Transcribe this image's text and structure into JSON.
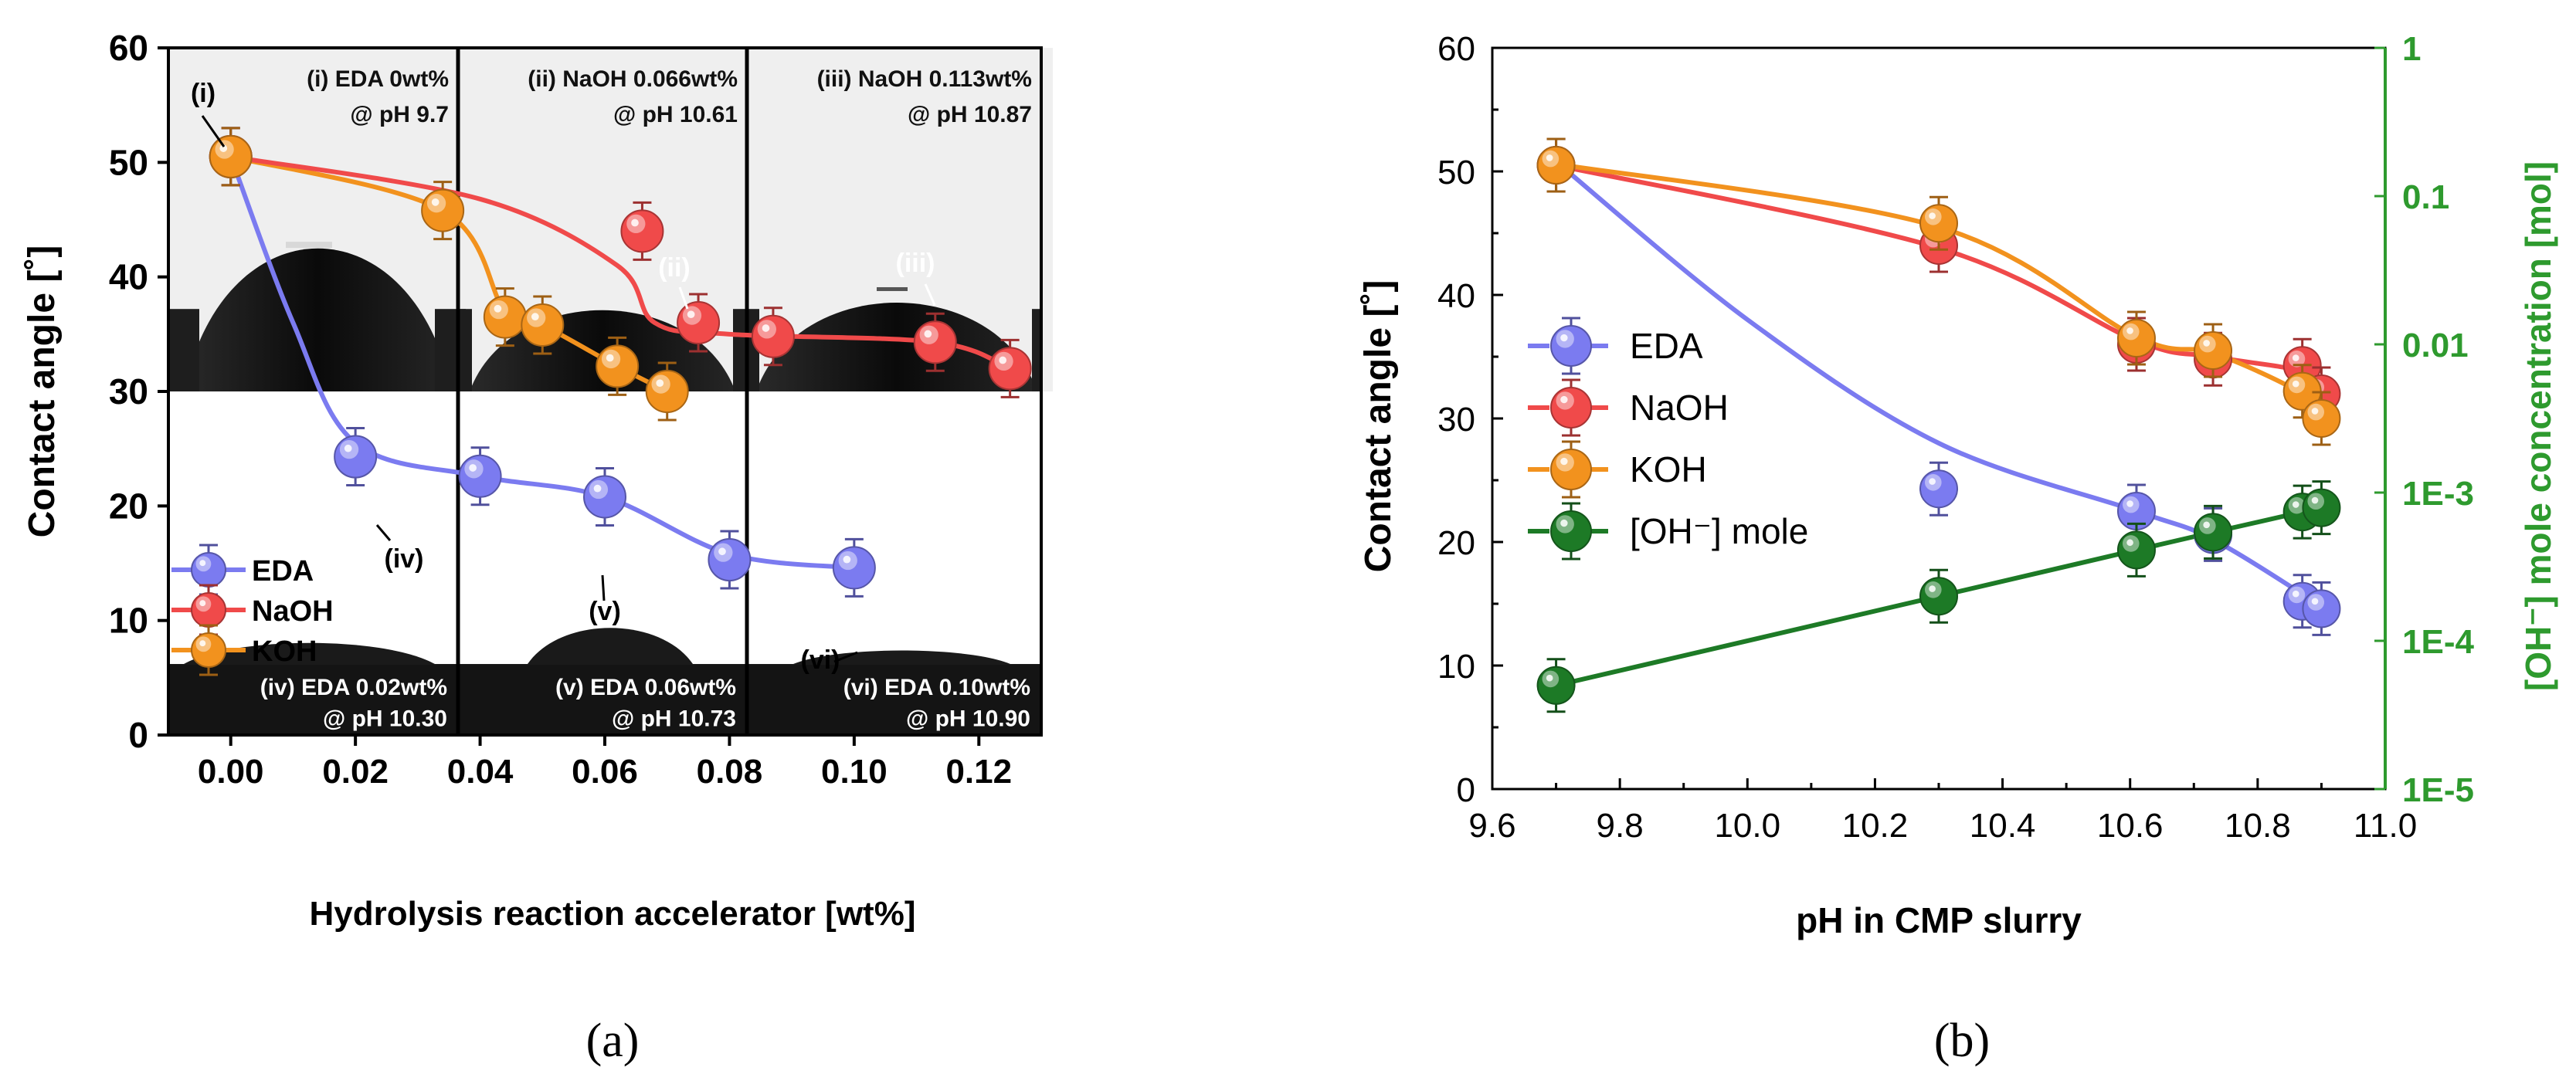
{
  "colors": {
    "eda": "#7b7bf0",
    "naoh": "#f04a4a",
    "koh": "#f2921e",
    "oh": "#1d7a26",
    "green_axis": "#2e9a2e"
  },
  "panel_a": {
    "caption": "(a)",
    "xlabel": "Hydrolysis reaction accelerator [wt%]",
    "ylabel": "Contact angle [˚]",
    "xticks": [
      "0.00",
      "0.02",
      "0.04",
      "0.06",
      "0.08",
      "0.10",
      "0.12"
    ],
    "yticks": [
      "0",
      "10",
      "20",
      "30",
      "40",
      "50",
      "60"
    ],
    "legend": [
      "EDA",
      "NaOH",
      "KOH"
    ],
    "insets": [
      {
        "l1": "(i) EDA 0wt%",
        "l2": "@ pH 9.7"
      },
      {
        "l1": "(ii) NaOH 0.066wt%",
        "l2": "@ pH 10.61"
      },
      {
        "l1": "(iii) NaOH 0.113wt%",
        "l2": "@ pH 10.87"
      },
      {
        "l1": "(iv) EDA 0.02wt%",
        "l2": "@ pH 10.30"
      },
      {
        "l1": "(v) EDA 0.06wt%",
        "l2": "@ pH 10.73"
      },
      {
        "l1": "(vi) EDA 0.10wt%",
        "l2": "@ pH 10.90"
      }
    ],
    "annotations": [
      "(i)",
      "(ii)",
      "(iii)",
      "(iv)",
      "(v)",
      "(vi)"
    ]
  },
  "panel_b": {
    "caption": "(b)",
    "xlabel": "pH in CMP slurry",
    "ylabel": "Contact angle [˚]",
    "y2label": "[OH⁻] mole concentration [mol]",
    "xticks": [
      "9.6",
      "9.8",
      "10.0",
      "10.2",
      "10.4",
      "10.6",
      "10.8",
      "11.0"
    ],
    "yticks": [
      "0",
      "10",
      "20",
      "30",
      "40",
      "50",
      "60"
    ],
    "y2ticks": [
      "1E-5",
      "1E-4",
      "1E-3",
      "0.01",
      "0.1",
      "1"
    ],
    "legend": [
      "EDA",
      "NaOH",
      "KOH",
      "[OH⁻] mole"
    ]
  },
  "chart_data": [
    {
      "type": "scatter",
      "title": "",
      "xlabel": "Hydrolysis reaction accelerator [wt%]",
      "ylabel": "Contact angle [˚]",
      "xlim": [
        -0.01,
        0.13
      ],
      "ylim": [
        0,
        60
      ],
      "series": [
        {
          "name": "EDA",
          "x": [
            0.0,
            0.02,
            0.04,
            0.06,
            0.08,
            0.1
          ],
          "y": [
            50.5,
            24.3,
            22.6,
            20.8,
            15.3,
            14.6
          ]
        },
        {
          "name": "NaOH",
          "x": [
            0.0,
            0.066,
            0.075,
            0.113,
            0.125
          ],
          "y": [
            50.5,
            44.0,
            36.0,
            34.3,
            32.0
          ],
          "x_extra": [
            0.087
          ],
          "y_extra": [
            34.8
          ]
        },
        {
          "name": "KOH",
          "x": [
            0.0,
            0.034,
            0.044,
            0.05,
            0.062,
            0.07
          ],
          "y": [
            50.5,
            45.8,
            36.5,
            35.8,
            32.2,
            30.0
          ]
        }
      ]
    },
    {
      "type": "scatter",
      "title": "",
      "xlabel": "pH in CMP slurry",
      "ylabel": "Contact angle [˚]",
      "y2label": "[OH⁻] mole concentration [mol]",
      "xlim": [
        9.6,
        11.0
      ],
      "ylim": [
        0,
        60
      ],
      "y2lim_log10": [
        -5,
        0
      ],
      "series": [
        {
          "name": "EDA",
          "axis": "left",
          "x": [
            9.7,
            10.3,
            10.61,
            10.73,
            10.87,
            10.9
          ],
          "y": [
            50.5,
            24.3,
            22.5,
            20.6,
            15.2,
            14.6
          ]
        },
        {
          "name": "NaOH",
          "axis": "left",
          "x": [
            9.7,
            10.3,
            10.61,
            10.73,
            10.87,
            10.9
          ],
          "y": [
            50.5,
            44.0,
            36.0,
            34.8,
            34.3,
            32.0
          ]
        },
        {
          "name": "KOH",
          "axis": "left",
          "x": [
            9.7,
            10.3,
            10.61,
            10.73,
            10.87,
            10.9
          ],
          "y": [
            50.5,
            45.8,
            36.5,
            35.5,
            32.2,
            30.0
          ]
        },
        {
          "name": "[OH⁻] mole",
          "axis": "right",
          "x": [
            9.7,
            10.3,
            10.61,
            10.73,
            10.87,
            10.9
          ],
          "y": [
            5e-05,
            0.0002,
            0.00041,
            0.00054,
            0.00074,
            0.00079
          ]
        }
      ]
    }
  ]
}
